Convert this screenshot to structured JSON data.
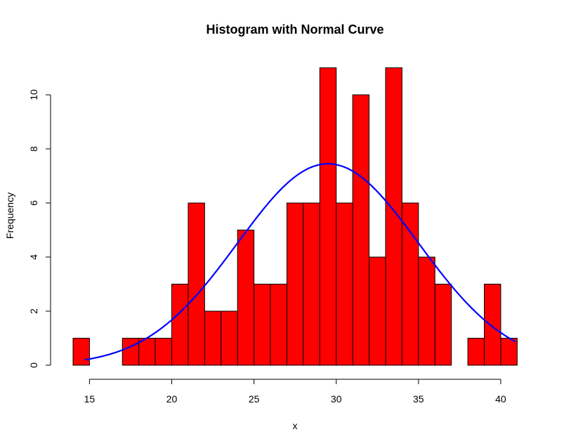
{
  "chart_data": {
    "type": "bar",
    "title": "Histogram with Normal Curve",
    "xlabel": "x",
    "ylabel": "Frequency",
    "xlim": [
      14,
      41
    ],
    "ylim": [
      0,
      11
    ],
    "x_ticks": [
      15,
      20,
      25,
      30,
      35,
      40
    ],
    "y_ticks": [
      0,
      2,
      4,
      6,
      8,
      10
    ],
    "bin_width": 1,
    "bins": [
      {
        "start": 14,
        "end": 15,
        "count": 1
      },
      {
        "start": 15,
        "end": 16,
        "count": 0
      },
      {
        "start": 16,
        "end": 17,
        "count": 0
      },
      {
        "start": 17,
        "end": 18,
        "count": 1
      },
      {
        "start": 18,
        "end": 19,
        "count": 1
      },
      {
        "start": 19,
        "end": 20,
        "count": 1
      },
      {
        "start": 20,
        "end": 21,
        "count": 3
      },
      {
        "start": 21,
        "end": 22,
        "count": 6
      },
      {
        "start": 22,
        "end": 23,
        "count": 2
      },
      {
        "start": 23,
        "end": 24,
        "count": 2
      },
      {
        "start": 24,
        "end": 25,
        "count": 5
      },
      {
        "start": 25,
        "end": 26,
        "count": 3
      },
      {
        "start": 26,
        "end": 27,
        "count": 3
      },
      {
        "start": 27,
        "end": 28,
        "count": 6
      },
      {
        "start": 28,
        "end": 29,
        "count": 6
      },
      {
        "start": 29,
        "end": 30,
        "count": 11
      },
      {
        "start": 30,
        "end": 31,
        "count": 6
      },
      {
        "start": 31,
        "end": 32,
        "count": 10
      },
      {
        "start": 32,
        "end": 33,
        "count": 4
      },
      {
        "start": 33,
        "end": 34,
        "count": 11
      },
      {
        "start": 34,
        "end": 35,
        "count": 6
      },
      {
        "start": 35,
        "end": 36,
        "count": 4
      },
      {
        "start": 36,
        "end": 37,
        "count": 3
      },
      {
        "start": 37,
        "end": 38,
        "count": 0
      },
      {
        "start": 38,
        "end": 39,
        "count": 1
      },
      {
        "start": 39,
        "end": 40,
        "count": 3
      },
      {
        "start": 40,
        "end": 41,
        "count": 1
      }
    ],
    "normal_curve": {
      "mean": 29.5,
      "sd": 5.5,
      "peak": 7.45,
      "x_range": [
        14.7,
        40.9
      ]
    },
    "colors": {
      "bar_fill": "#ff0000",
      "bar_border": "#000000",
      "curve": "#0000ff"
    }
  }
}
